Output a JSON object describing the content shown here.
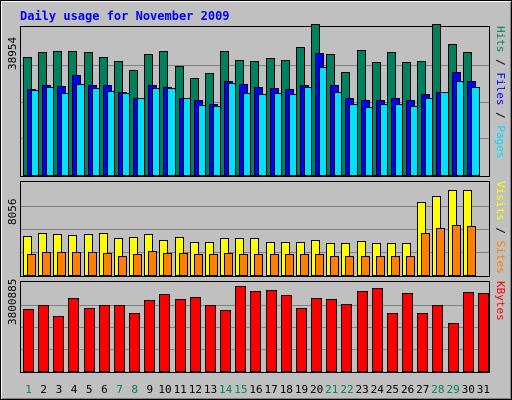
{
  "chart_data": {
    "type": "bar",
    "title": "Daily usage for November 2009",
    "days": [
      "1",
      "2",
      "3",
      "4",
      "5",
      "6",
      "7",
      "8",
      "9",
      "10",
      "11",
      "12",
      "13",
      "14",
      "15",
      "16",
      "17",
      "18",
      "19",
      "20",
      "21",
      "22",
      "23",
      "24",
      "25",
      "26",
      "27",
      "28",
      "29",
      "30",
      "31"
    ],
    "weekend_days": [
      "1",
      "7",
      "8",
      "14",
      "15",
      "21",
      "22",
      "28",
      "29"
    ],
    "panels": [
      {
        "name": "pages-files-hits",
        "ymax": 38954,
        "ymax_label": "38954",
        "right_labels": [
          {
            "text": "Hits",
            "color": "#00805c"
          },
          {
            "text": "Files",
            "color": "#0000ff"
          },
          {
            "text": "Pages",
            "color": "#00e0ff"
          }
        ],
        "series": [
          {
            "name": "Hits",
            "color": "#00805c",
            "values": [
              31400,
              32500,
              32800,
              32900,
              32600,
              31300,
              30300,
              27800,
              32100,
              32800,
              29000,
              25800,
              26900,
              32800,
              30400,
              30100,
              31000,
              30500,
              34000,
              40000,
              32000,
              27200,
              33000,
              30000,
              32500,
              30000,
              30200,
              40000,
              34700,
              32700,
              0
            ]
          },
          {
            "name": "Files",
            "color": "#0000ff",
            "values": [
              22700,
              23900,
              23600,
              26600,
              23800,
              23800,
              22100,
              20300,
              23800,
              23300,
              20400,
              19800,
              18900,
              24800,
              24100,
              23200,
              23100,
              22700,
              23900,
              32400,
              23900,
              20300,
              20000,
              20000,
              20300,
              19800,
              21500,
              22000,
              27200,
              24800,
              0
            ]
          },
          {
            "name": "Pages",
            "color": "#00e0ff",
            "values": [
              22600,
              23400,
              21700,
              24200,
              23000,
              22200,
              21800,
              20300,
              23000,
              23100,
              20400,
              18600,
              18400,
              24400,
              21800,
              21500,
              21800,
              21400,
              23200,
              28700,
              22000,
              18900,
              18000,
              18800,
              18700,
              18300,
              20300,
              21900,
              24800,
              23300,
              0
            ]
          }
        ]
      },
      {
        "name": "visits-sites",
        "ymax": 8056,
        "ymax_label": "8056",
        "right_labels": [
          {
            "text": "Visits",
            "color": "#ffff00"
          },
          {
            "text": "Sites",
            "color": "#ff8000"
          }
        ],
        "series": [
          {
            "name": "Visits",
            "color": "#ffff00",
            "values": [
              3400,
              3700,
              3600,
              3500,
              3600,
              3700,
              3200,
              3300,
              3600,
              3100,
              3300,
              2900,
              2900,
              3200,
              3200,
              3200,
              2900,
              2900,
              2900,
              3100,
              2800,
              2800,
              3000,
              2800,
              2800,
              2800,
              6400,
              6900,
              7400,
              7400,
              0
            ]
          },
          {
            "name": "Sites",
            "color": "#ff8000",
            "values": [
              1800,
              2000,
              2000,
              2000,
              2000,
              1900,
              1700,
              1800,
              2100,
              1900,
              1900,
              1800,
              1800,
              1900,
              1800,
              1800,
              1800,
              1800,
              1800,
              1800,
              1700,
              1700,
              1700,
              1700,
              1700,
              1700,
              3700,
              4100,
              4400,
              4300,
              0
            ]
          }
        ]
      },
      {
        "name": "kbytes",
        "ymax": 3800885,
        "ymax_label": "3800885",
        "right_labels": [
          {
            "text": "KBytes",
            "color": "#ff0000"
          }
        ],
        "series": [
          {
            "name": "KBytes",
            "color": "#ff0000",
            "values": [
              2670000,
              2840000,
              2380000,
              3160000,
              2720000,
              2860000,
              2850000,
              2490000,
              3060000,
              3320000,
              3110000,
              3190000,
              2850000,
              2640000,
              3690000,
              3450000,
              3480000,
              3280000,
              2700000,
              3160000,
              3130000,
              2900000,
              3440000,
              3590000,
              2500000,
              3350000,
              2500000,
              2860000,
              2070000,
              3420000,
              3390000
            ]
          }
        ]
      }
    ]
  }
}
